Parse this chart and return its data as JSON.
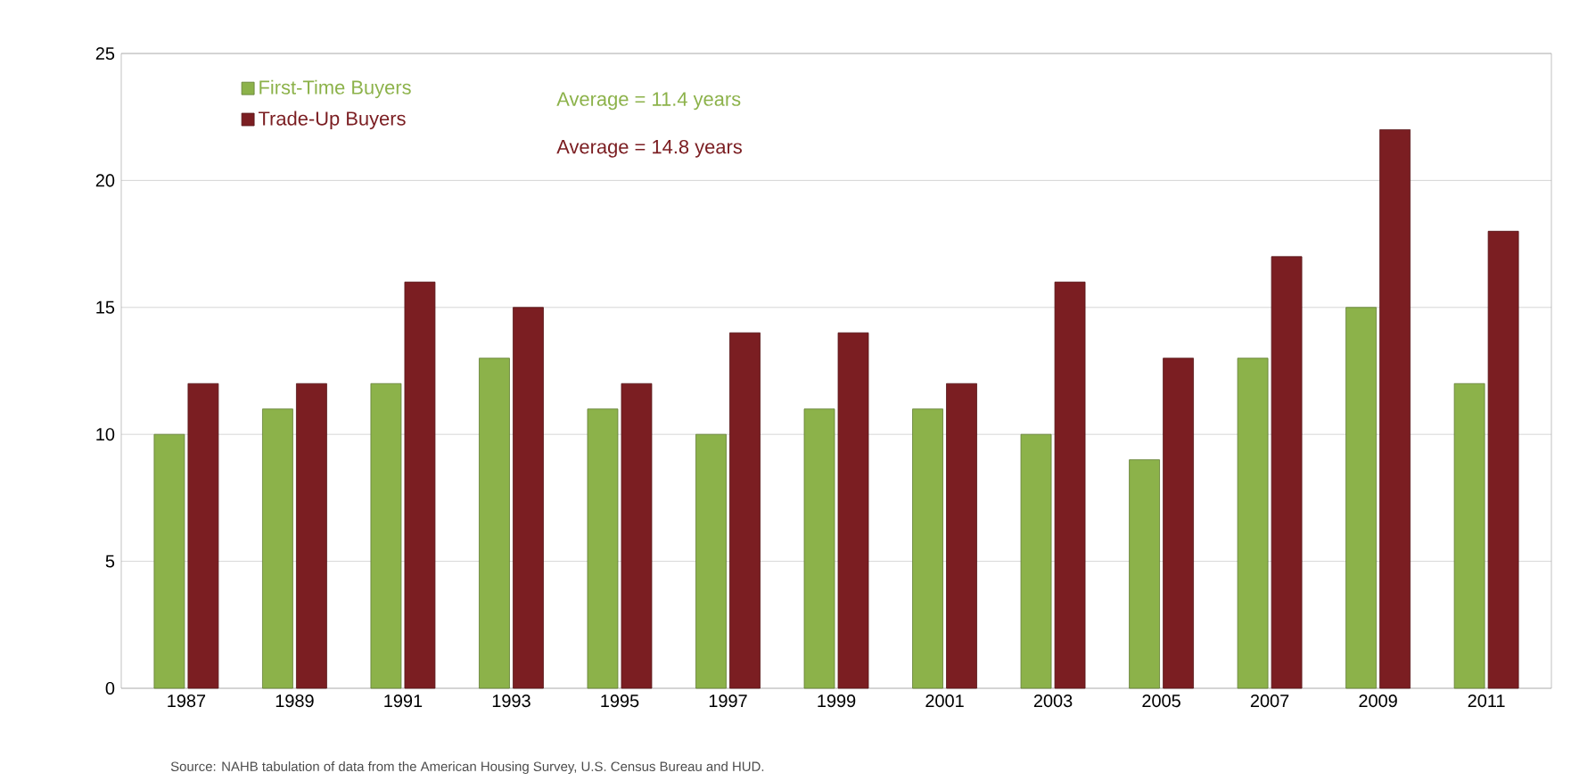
{
  "chart_data": {
    "type": "bar",
    "categories": [
      "1987",
      "1989",
      "1991",
      "1993",
      "1995",
      "1997",
      "1999",
      "2001",
      "2003",
      "2005",
      "2007",
      "2009",
      "2011"
    ],
    "series": [
      {
        "name": "First-Time Buyers",
        "color": "#8cb24a",
        "values": [
          10,
          11,
          12,
          13,
          11,
          10,
          11,
          11,
          10,
          9,
          13,
          15,
          12
        ]
      },
      {
        "name": "Trade-Up Buyers",
        "color": "#7b1e22",
        "values": [
          12,
          12,
          16,
          15,
          12,
          14,
          14,
          12,
          16,
          13,
          17,
          22,
          18
        ]
      }
    ],
    "ylim": [
      0,
      25
    ],
    "yticks": [
      0,
      5,
      10,
      15,
      20,
      25
    ],
    "grid": "y",
    "legend": "top left",
    "annotations": [
      "Average = 11.4 years",
      "Average = 14.8 years",
      "Source: NAHB tabulation of data from the American Housing Survey, U.S. Census Bureau and HUD."
    ]
  }
}
